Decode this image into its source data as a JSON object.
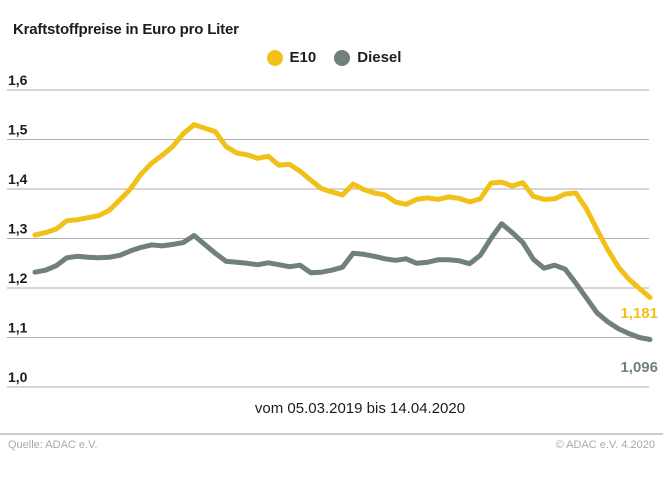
{
  "title": "Kraftstoffpreise in Euro pro Liter",
  "legend": [
    {
      "label": "E10"
    },
    {
      "label": "Diesel"
    }
  ],
  "colors": {
    "e10": "#f2c119",
    "diesel": "#70807d",
    "ink": "#1d1d1b",
    "grid": "#adadad",
    "muted": "#a5abab",
    "rule": "#c9cece",
    "background": "#ffffff"
  },
  "footer": {
    "source": "Quelle: ADAC e.V.",
    "copyright": "© ADAC e.V. 4.2020"
  },
  "chart_data": {
    "type": "line",
    "title": "Kraftstoffpreise in Euro pro Liter",
    "xlabel": "vom 05.03.2019 bis 14.04.2020",
    "ylabel": "Euro pro Liter",
    "ylim": [
      1.0,
      1.6
    ],
    "grid": "horizontal",
    "legend_position": "top-center",
    "x_period": {
      "start": "05.03.2019",
      "end": "14.04.2020",
      "interval": "weekly"
    },
    "yticks": [
      {
        "value": 1.6,
        "label": "1,6"
      },
      {
        "value": 1.5,
        "label": "1,5"
      },
      {
        "value": 1.4,
        "label": "1,4"
      },
      {
        "value": 1.3,
        "label": "1,3"
      },
      {
        "value": 1.2,
        "label": "1,2"
      },
      {
        "value": 1.1,
        "label": "1,1"
      },
      {
        "value": 1.0,
        "label": "1,0"
      }
    ],
    "series": [
      {
        "name": "E10",
        "color_key": "e10",
        "end_label": "1,181",
        "final_value": 1.181,
        "values": [
          1.307,
          1.312,
          1.319,
          1.336,
          1.338,
          1.342,
          1.346,
          1.357,
          1.378,
          1.4,
          1.43,
          1.452,
          1.468,
          1.486,
          1.512,
          1.53,
          1.523,
          1.516,
          1.486,
          1.473,
          1.469,
          1.462,
          1.466,
          1.448,
          1.45,
          1.436,
          1.418,
          1.401,
          1.394,
          1.388,
          1.41,
          1.399,
          1.392,
          1.388,
          1.374,
          1.369,
          1.379,
          1.382,
          1.379,
          1.384,
          1.381,
          1.374,
          1.38,
          1.412,
          1.414,
          1.406,
          1.413,
          1.385,
          1.379,
          1.38,
          1.39,
          1.392,
          1.36,
          1.318,
          1.278,
          1.243,
          1.218,
          1.199,
          1.181
        ]
      },
      {
        "name": "Diesel",
        "color_key": "diesel",
        "end_label": "1,096",
        "final_value": 1.096,
        "values": [
          1.232,
          1.236,
          1.245,
          1.261,
          1.264,
          1.262,
          1.261,
          1.262,
          1.266,
          1.275,
          1.282,
          1.287,
          1.285,
          1.288,
          1.292,
          1.306,
          1.288,
          1.27,
          1.254,
          1.252,
          1.25,
          1.247,
          1.251,
          1.247,
          1.243,
          1.246,
          1.231,
          1.232,
          1.236,
          1.242,
          1.27,
          1.268,
          1.264,
          1.259,
          1.256,
          1.259,
          1.25,
          1.252,
          1.257,
          1.257,
          1.255,
          1.249,
          1.266,
          1.3,
          1.33,
          1.312,
          1.292,
          1.258,
          1.24,
          1.246,
          1.238,
          1.21,
          1.18,
          1.15,
          1.132,
          1.118,
          1.108,
          1.1,
          1.096
        ]
      }
    ]
  }
}
